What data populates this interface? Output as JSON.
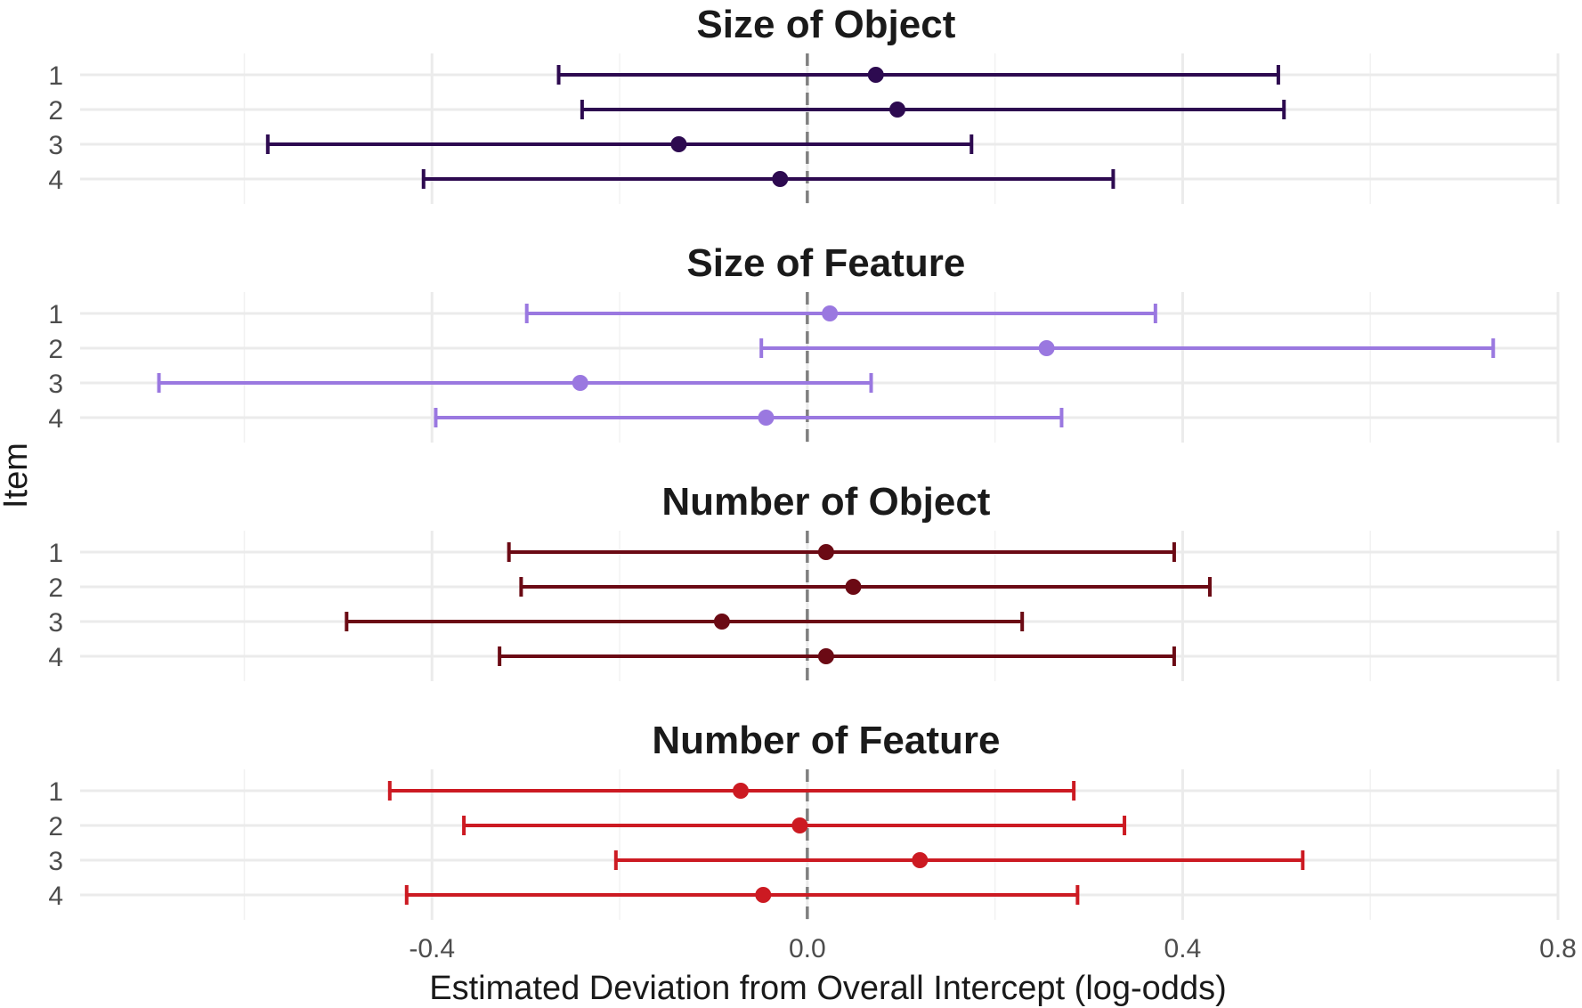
{
  "chart_data": {
    "type": "scatter",
    "subtype": "forest-plot-errorbar",
    "xlabel": "Estimated Deviation from Overall Intercept (log-odds)",
    "ylabel": "Item",
    "xlim": [
      -0.775,
      0.8
    ],
    "x_ticks": [
      -0.4,
      0.0,
      0.4,
      0.8
    ],
    "x_tick_labels": [
      "-0.4",
      "0.0",
      "0.4",
      "0.8"
    ],
    "y_categories": [
      "1",
      "2",
      "3",
      "4"
    ],
    "reference_line": 0.0,
    "grid": true,
    "legend": "none",
    "panels": [
      {
        "title": "Size of Object",
        "color": "#2d0a50",
        "items": [
          {
            "item": "1",
            "estimate": 0.073,
            "lower": -0.265,
            "upper": 0.502
          },
          {
            "item": "2",
            "estimate": 0.096,
            "lower": -0.24,
            "upper": 0.508
          },
          {
            "item": "3",
            "estimate": -0.137,
            "lower": -0.575,
            "upper": 0.175
          },
          {
            "item": "4",
            "estimate": -0.029,
            "lower": -0.409,
            "upper": 0.326
          }
        ]
      },
      {
        "title": "Size of Feature",
        "color": "#9a78e0",
        "items": [
          {
            "item": "1",
            "estimate": 0.024,
            "lower": -0.299,
            "upper": 0.371
          },
          {
            "item": "2",
            "estimate": 0.255,
            "lower": -0.049,
            "upper": 0.731
          },
          {
            "item": "3",
            "estimate": -0.242,
            "lower": -0.691,
            "upper": 0.068
          },
          {
            "item": "4",
            "estimate": -0.044,
            "lower": -0.396,
            "upper": 0.271
          }
        ]
      },
      {
        "title": "Number of Object",
        "color": "#6b0a14",
        "items": [
          {
            "item": "1",
            "estimate": 0.02,
            "lower": -0.318,
            "upper": 0.391
          },
          {
            "item": "2",
            "estimate": 0.049,
            "lower": -0.305,
            "upper": 0.429
          },
          {
            "item": "3",
            "estimate": -0.091,
            "lower": -0.491,
            "upper": 0.229
          },
          {
            "item": "4",
            "estimate": 0.02,
            "lower": -0.328,
            "upper": 0.391
          }
        ]
      },
      {
        "title": "Number of Feature",
        "color": "#cc1a22",
        "items": [
          {
            "item": "1",
            "estimate": -0.071,
            "lower": -0.445,
            "upper": 0.284
          },
          {
            "item": "2",
            "estimate": -0.008,
            "lower": -0.366,
            "upper": 0.338
          },
          {
            "item": "3",
            "estimate": 0.12,
            "lower": -0.204,
            "upper": 0.528
          },
          {
            "item": "4",
            "estimate": -0.047,
            "lower": -0.427,
            "upper": 0.288
          }
        ]
      }
    ]
  }
}
